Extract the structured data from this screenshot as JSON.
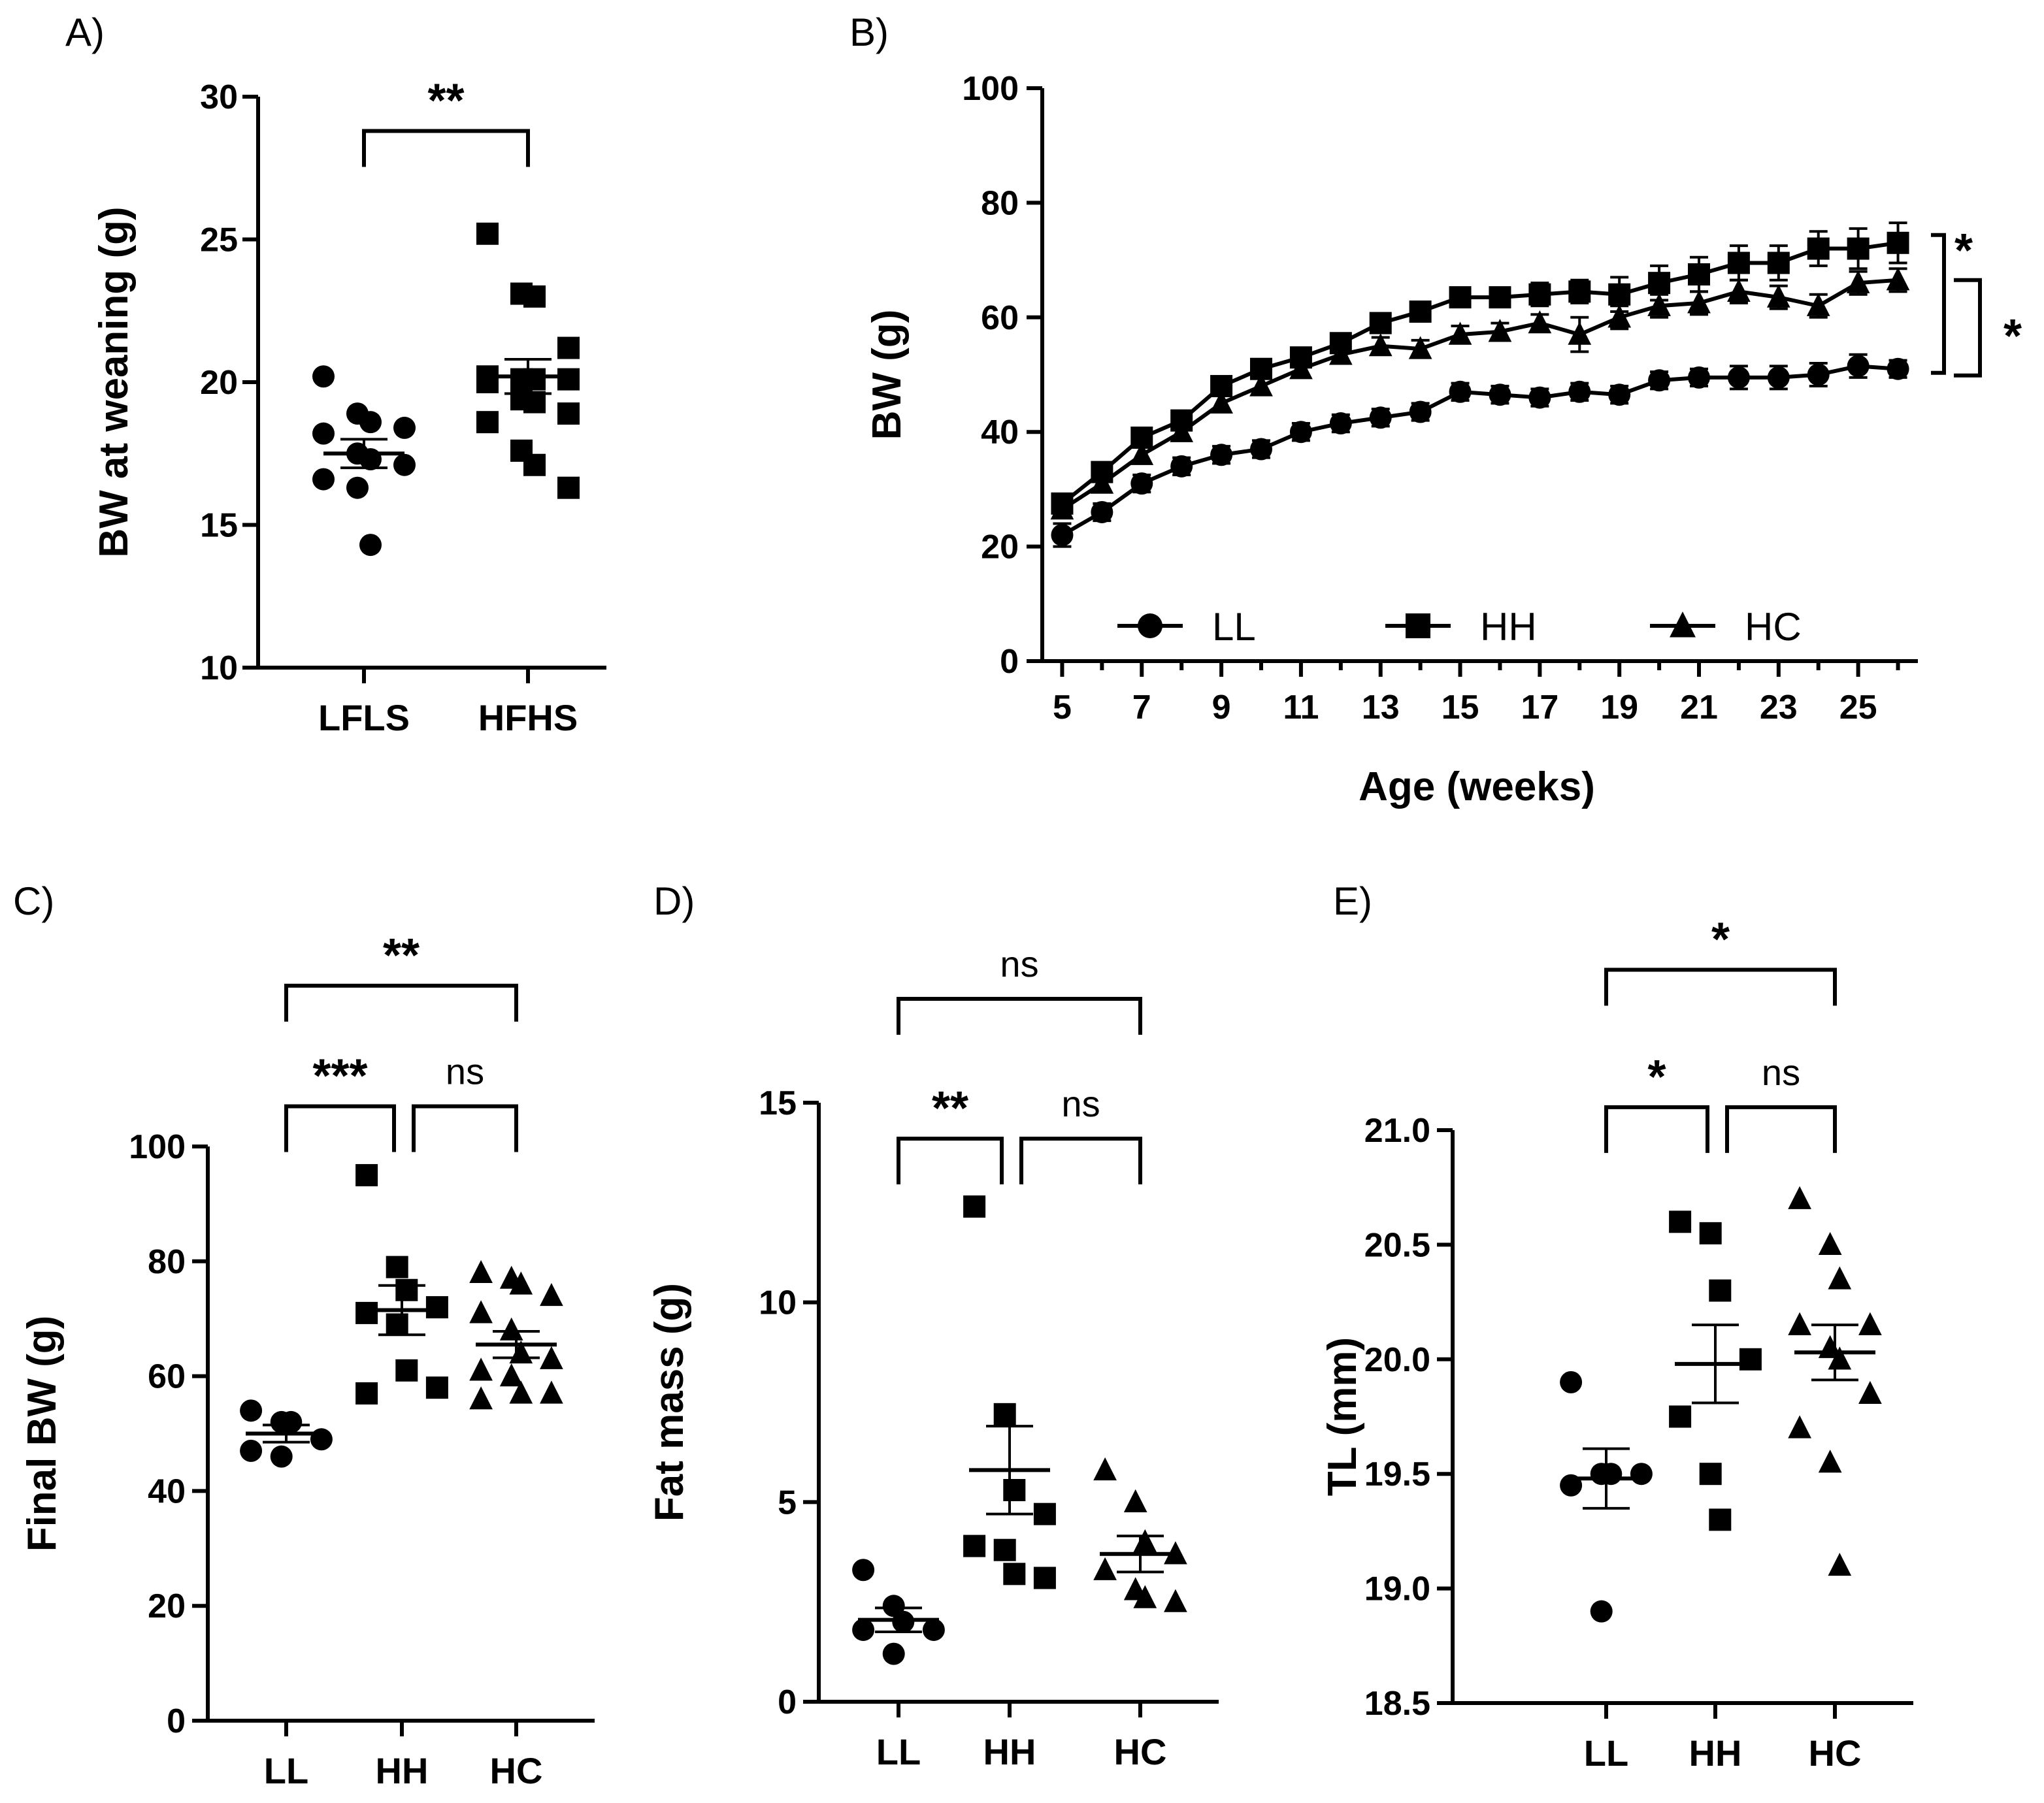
{
  "chart_data": [
    {
      "id": "A",
      "panel_label": "A)",
      "type": "scatter",
      "ylabel": "BW at weaning (g)",
      "ylim": [
        10,
        30
      ],
      "yticks": [
        10,
        15,
        20,
        25,
        30
      ],
      "categories": [
        "LFLS",
        "HFHS"
      ],
      "groups": [
        {
          "name": "LFLS",
          "marker": "circle",
          "values": [
            20.2,
            18.9,
            18.6,
            18.4,
            18.2,
            17.5,
            17.3,
            17.1,
            16.6,
            16.3,
            14.3
          ],
          "mean": 17.5,
          "sem": 0.5
        },
        {
          "name": "HFHS",
          "marker": "square",
          "values": [
            25.2,
            23.1,
            23.0,
            21.2,
            20.2,
            20.1,
            20.1,
            20.1,
            20.0,
            19.4,
            19.3,
            18.9,
            18.6,
            17.6,
            17.1,
            16.3
          ],
          "mean": 20.2,
          "sem": 0.6
        }
      ],
      "comparisons": [
        {
          "from": "LFLS",
          "to": "HFHS",
          "label": "**",
          "y": 28.8
        }
      ]
    },
    {
      "id": "B",
      "panel_label": "B)",
      "type": "line",
      "xlabel": "Age (weeks)",
      "ylabel": "BW (g)",
      "xlim": [
        4.5,
        26.5
      ],
      "ylim": [
        0,
        100
      ],
      "xticks": [
        5,
        7,
        9,
        11,
        13,
        15,
        17,
        19,
        21,
        23,
        25
      ],
      "yticks": [
        0,
        20,
        40,
        60,
        80,
        100
      ],
      "x": [
        5,
        6,
        7,
        8,
        9,
        10,
        11,
        12,
        13,
        14,
        15,
        16,
        17,
        18,
        19,
        20,
        21,
        22,
        23,
        24,
        25,
        26
      ],
      "series": [
        {
          "name": "LL",
          "marker": "circle",
          "values": [
            22,
            26,
            31,
            34,
            36,
            37,
            40,
            41.5,
            42.5,
            43.5,
            47,
            46.5,
            46,
            47,
            46.5,
            49,
            49.5,
            49.5,
            49.5,
            50,
            51.5,
            51
          ],
          "errors": [
            2,
            1.5,
            1.5,
            1.5,
            1.5,
            1.5,
            1.5,
            1.5,
            1.5,
            1.5,
            1.5,
            1.5,
            1.5,
            1.5,
            1.5,
            1.5,
            1.5,
            2,
            2,
            2,
            2,
            1.5
          ]
        },
        {
          "name": "HH",
          "marker": "square",
          "values": [
            27.5,
            33,
            39,
            42,
            48,
            51,
            53,
            55.5,
            59,
            61,
            63.5,
            63.5,
            64,
            64.5,
            64,
            66,
            67.5,
            69.5,
            69.5,
            72,
            72,
            73
          ],
          "errors": [
            1.5,
            1.5,
            1.5,
            1.5,
            1.5,
            1.5,
            1.5,
            1.5,
            1.5,
            1.5,
            1.5,
            1.5,
            2,
            2,
            3,
            3,
            3,
            3,
            3,
            3,
            3.5,
            3.5
          ]
        },
        {
          "name": "HC",
          "marker": "triangle",
          "values": [
            26.5,
            31,
            36,
            40,
            45,
            48,
            51,
            53.5,
            55,
            54.5,
            57,
            57.5,
            59,
            57,
            60,
            62,
            62.5,
            64.5,
            63.5,
            62,
            66,
            66.5
          ],
          "errors": [
            1.5,
            1.5,
            1.5,
            1.5,
            1.5,
            1.5,
            1.5,
            1.5,
            1.5,
            1.5,
            1.5,
            1.5,
            1.5,
            3,
            2,
            2,
            2,
            2,
            2,
            2,
            2,
            2
          ]
        }
      ],
      "legend": [
        "LL",
        "HH",
        "HC"
      ],
      "legend_position": "bottom-inside",
      "comparisons": [
        {
          "pair": [
            "HH",
            "LL"
          ],
          "label": "*"
        },
        {
          "pair": [
            "HC",
            "LL"
          ],
          "label": "*"
        }
      ]
    },
    {
      "id": "C",
      "panel_label": "C)",
      "type": "scatter",
      "ylabel": "Final BW (g)",
      "ylim": [
        0,
        100
      ],
      "yticks": [
        0,
        20,
        40,
        60,
        80,
        100
      ],
      "categories": [
        "LL",
        "HH",
        "HC"
      ],
      "groups": [
        {
          "name": "LL",
          "marker": "circle",
          "values": [
            54,
            52,
            52,
            49,
            47,
            46
          ],
          "mean": 50,
          "sem": 1.5
        },
        {
          "name": "HH",
          "marker": "square",
          "values": [
            95,
            79,
            75,
            72,
            71,
            69,
            61,
            58,
            57
          ],
          "mean": 71.5,
          "sem": 4.3
        },
        {
          "name": "HC",
          "marker": "triangle",
          "values": [
            78,
            77,
            76,
            74,
            71,
            68,
            64,
            63,
            61,
            60,
            57,
            57,
            56
          ],
          "mean": 65.5,
          "sem": 2.3
        }
      ],
      "comparisons": [
        {
          "from": "LL",
          "to": "HC",
          "label": "**",
          "y": 128
        },
        {
          "from": "LL",
          "to": "HH",
          "label": "***",
          "y": 107
        },
        {
          "from": "HH",
          "to": "HC",
          "label": "ns",
          "y": 107
        }
      ]
    },
    {
      "id": "D",
      "panel_label": "D)",
      "type": "scatter",
      "ylabel": "Fat mass (g)",
      "ylim": [
        0,
        15
      ],
      "yticks": [
        0,
        5,
        10,
        15
      ],
      "categories": [
        "LL",
        "HH",
        "HC"
      ],
      "groups": [
        {
          "name": "LL",
          "marker": "circle",
          "values": [
            3.3,
            2.4,
            2.0,
            1.8,
            1.8,
            1.2
          ],
          "mean": 2.05,
          "sem": 0.3
        },
        {
          "name": "HH",
          "marker": "square",
          "values": [
            12.4,
            7.2,
            5.3,
            4.7,
            3.9,
            3.8,
            3.2,
            3.1
          ],
          "mean": 5.8,
          "sem": 1.1
        },
        {
          "name": "HC",
          "marker": "triangle",
          "values": [
            5.8,
            5.0,
            4.0,
            3.7,
            3.3,
            2.8,
            2.6,
            2.5
          ],
          "mean": 3.7,
          "sem": 0.45
        }
      ],
      "comparisons": [
        {
          "from": "LL",
          "to": "HC",
          "label": "ns",
          "y": 17.6
        },
        {
          "from": "LL",
          "to": "HH",
          "label": "**",
          "y": 14.1
        },
        {
          "from": "HH",
          "to": "HC",
          "label": "ns",
          "y": 14.1
        }
      ]
    },
    {
      "id": "E",
      "panel_label": "E)",
      "type": "scatter",
      "ylabel": "TL (mm)",
      "ylim": [
        18.5,
        21.0
      ],
      "yticks": [
        18.5,
        19.0,
        19.5,
        20.0,
        20.5,
        21.0
      ],
      "ytick_labels": [
        "18.5",
        "19.0",
        "19.5",
        "20.0",
        "20.5",
        "21.0"
      ],
      "categories": [
        "LL",
        "HH",
        "HC"
      ],
      "groups": [
        {
          "name": "LL",
          "marker": "circle",
          "values": [
            19.9,
            19.5,
            19.5,
            19.5,
            19.45,
            18.9
          ],
          "mean": 19.48,
          "sem": 0.13
        },
        {
          "name": "HH",
          "marker": "square",
          "values": [
            20.6,
            20.55,
            20.3,
            20.0,
            19.75,
            19.5,
            19.3
          ],
          "mean": 19.98,
          "sem": 0.17
        },
        {
          "name": "HC",
          "marker": "triangle",
          "values": [
            20.7,
            20.5,
            20.35,
            20.15,
            20.15,
            20.05,
            20.0,
            19.85,
            19.7,
            19.55,
            19.1
          ],
          "mean": 20.03,
          "sem": 0.12
        }
      ],
      "comparisons": [
        {
          "from": "LL",
          "to": "HC",
          "label": "*",
          "y": 21.7
        },
        {
          "from": "LL",
          "to": "HH",
          "label": "*",
          "y": 21.1
        },
        {
          "from": "HH",
          "to": "HC",
          "label": "ns",
          "y": 21.1
        }
      ]
    }
  ]
}
